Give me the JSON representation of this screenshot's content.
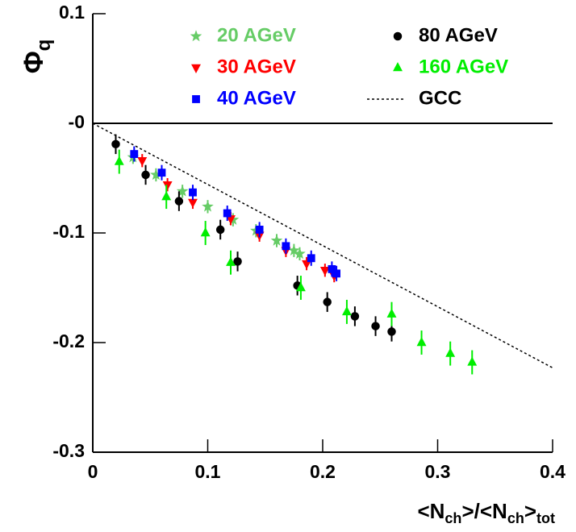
{
  "chart_data": {
    "type": "scatter",
    "ylabel": [
      "Φ",
      "q"
    ],
    "xlabel": [
      "<N",
      "ch",
      ">/<N",
      "ch",
      ">",
      "tot"
    ],
    "xlim": [
      0,
      0.4
    ],
    "ylim": [
      -0.3,
      0.1
    ],
    "xticks": [
      0,
      0.1,
      0.2,
      0.3,
      0.4
    ],
    "yticks": [
      0.1,
      {
        "value": 0,
        "label": "-0"
      },
      -0.1,
      -0.2,
      -0.3
    ],
    "zero_line": true,
    "series": [
      {
        "name": "20 AGeV",
        "color": "#66cc66",
        "marker": "star",
        "x": [
          0.035,
          0.055,
          0.078,
          0.1,
          0.122,
          0.142,
          0.16,
          0.175,
          0.18
        ],
        "values": [
          -0.031,
          -0.047,
          -0.062,
          -0.076,
          -0.088,
          -0.098,
          -0.107,
          -0.116,
          -0.119
        ],
        "errors": [
          0.006,
          0.006,
          0.006,
          0.006,
          0.006,
          0.006,
          0.006,
          0.006,
          0.006
        ]
      },
      {
        "name": "30 AGeV",
        "color": "#ff0000",
        "marker": "triangle-down",
        "x": [
          0.043,
          0.065,
          0.087,
          0.12,
          0.145,
          0.168,
          0.186,
          0.202,
          0.21
        ],
        "values": [
          -0.034,
          -0.056,
          -0.072,
          -0.087,
          -0.102,
          -0.116,
          -0.128,
          -0.134,
          -0.139
        ],
        "errors": [
          0.006,
          0.006,
          0.006,
          0.006,
          0.006,
          0.006,
          0.006,
          0.006,
          0.006
        ]
      },
      {
        "name": "40 AGeV",
        "color": "#0000ff",
        "marker": "square",
        "x": [
          0.036,
          0.06,
          0.087,
          0.117,
          0.145,
          0.168,
          0.19,
          0.208,
          0.212
        ],
        "values": [
          -0.028,
          -0.045,
          -0.063,
          -0.082,
          -0.097,
          -0.112,
          -0.123,
          -0.133,
          -0.137
        ],
        "errors": [
          0.007,
          0.007,
          0.007,
          0.007,
          0.007,
          0.007,
          0.007,
          0.007,
          0.007
        ]
      },
      {
        "name": "80 AGeV",
        "color": "#000000",
        "marker": "circle",
        "x": [
          0.02,
          0.046,
          0.075,
          0.111,
          0.126,
          0.178,
          0.204,
          0.228,
          0.246,
          0.26
        ],
        "values": [
          -0.019,
          -0.047,
          -0.071,
          -0.097,
          -0.126,
          -0.148,
          -0.163,
          -0.176,
          -0.185,
          -0.19
        ],
        "errors": [
          0.009,
          0.009,
          0.009,
          0.009,
          0.009,
          0.009,
          0.009,
          0.009,
          0.009,
          0.009
        ]
      },
      {
        "name": "160 AGeV",
        "color": "#00ee00",
        "marker": "triangle",
        "x": [
          0.023,
          0.064,
          0.098,
          0.12,
          0.181,
          0.221,
          0.26,
          0.286,
          0.311,
          0.33
        ],
        "values": [
          -0.035,
          -0.067,
          -0.1,
          -0.127,
          -0.15,
          -0.172,
          -0.174,
          -0.2,
          -0.21,
          -0.218
        ],
        "errors": [
          0.011,
          0.011,
          0.011,
          0.011,
          0.011,
          0.011,
          0.011,
          0.011,
          0.011,
          0.011
        ]
      },
      {
        "name": "GCC",
        "color": "#000000",
        "marker": "dashed-line",
        "x": [
          0,
          0.4
        ],
        "values": [
          0,
          -0.223
        ]
      }
    ]
  }
}
